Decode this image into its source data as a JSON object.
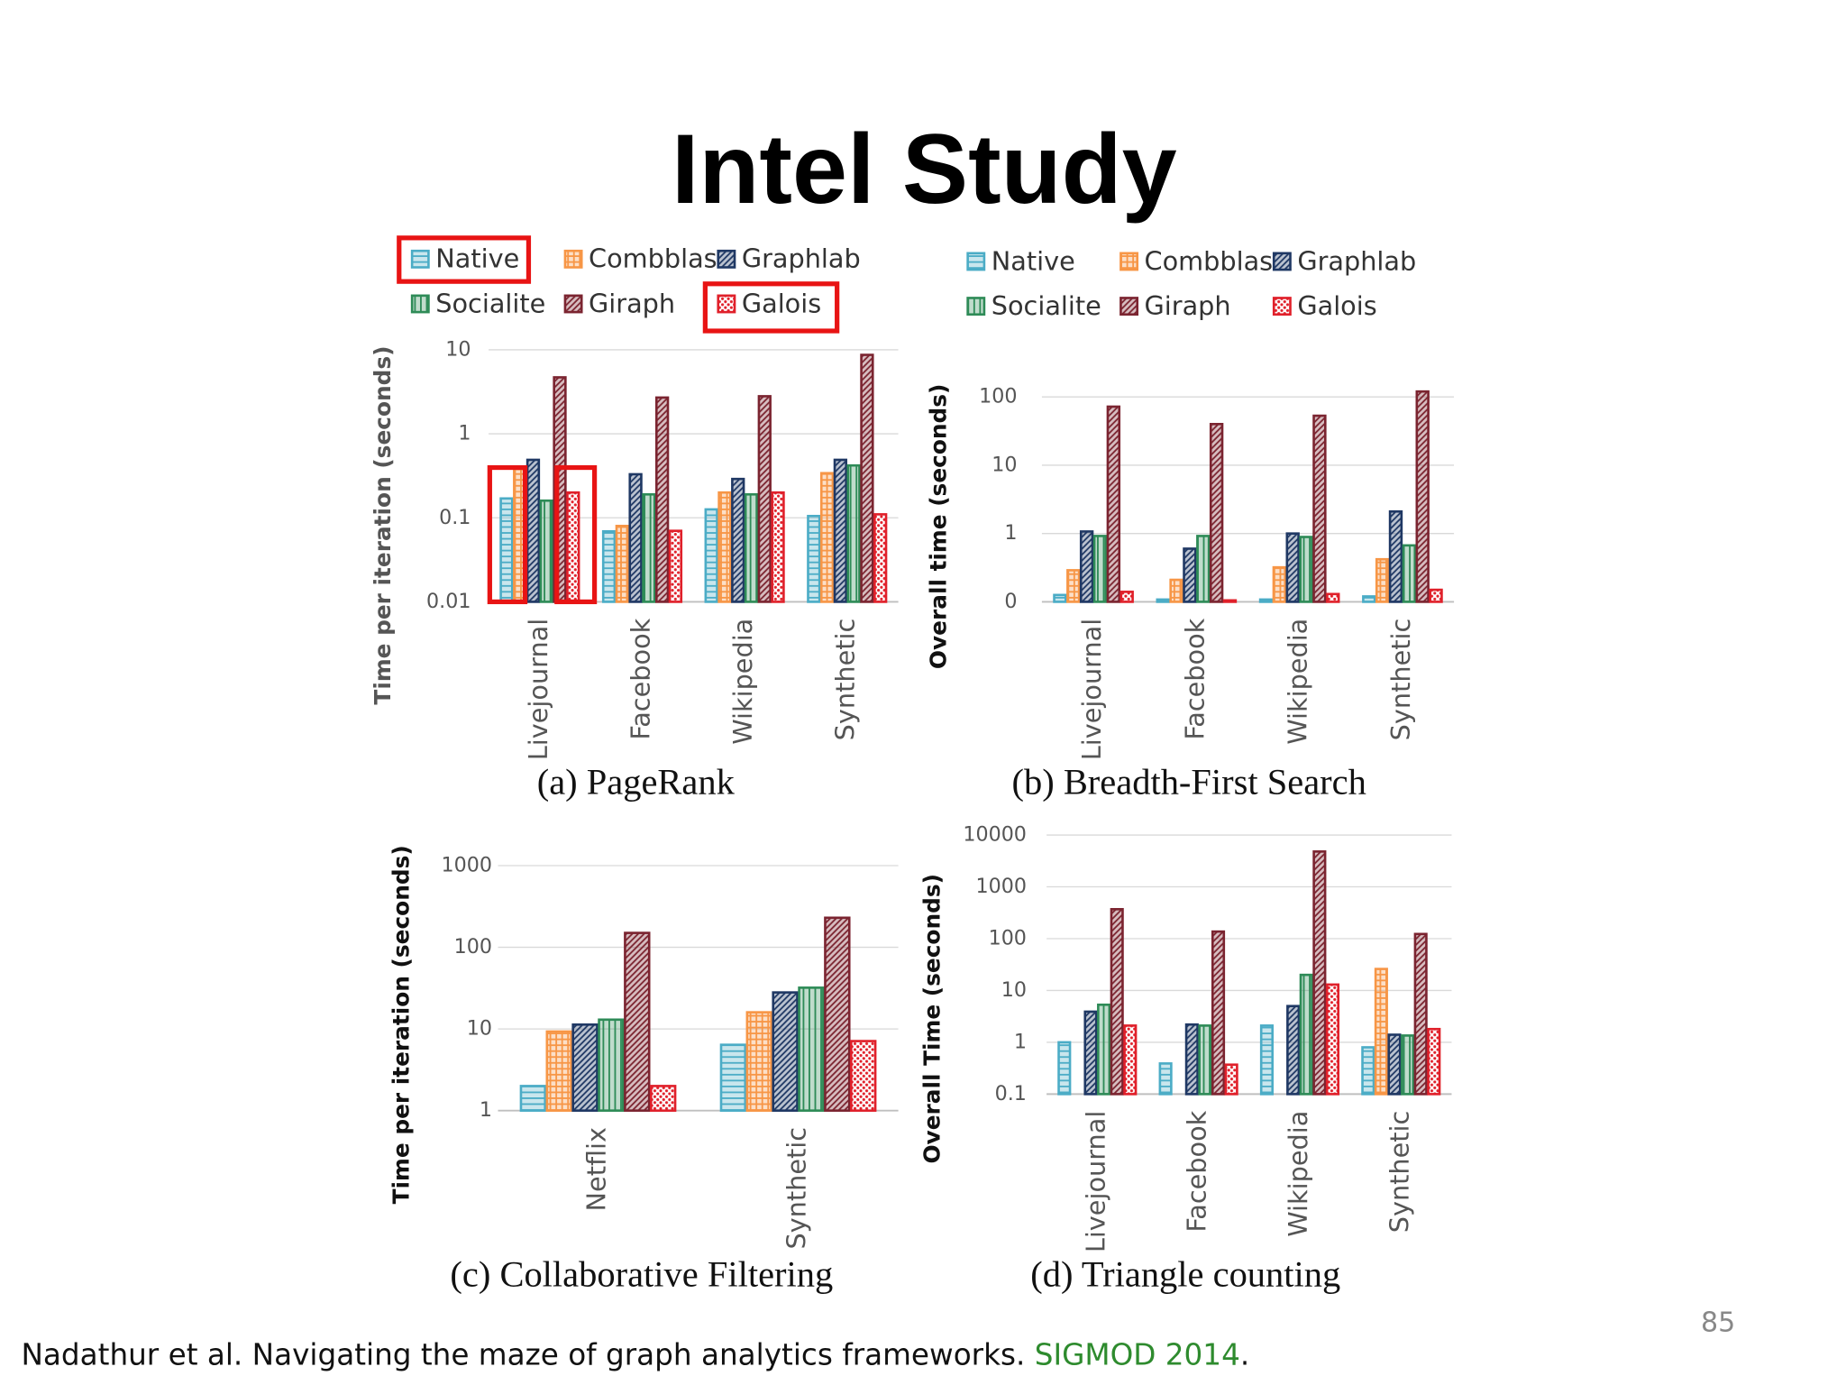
{
  "title": "Intel Study",
  "chart_data": [
    {
      "type": "bar",
      "title": "(a) PageRank",
      "y_label": "Time per iteration (seconds)",
      "log_y": true,
      "grid": true,
      "legend": true,
      "categories": [
        "Livejournal",
        "Facebook",
        "Wikipedia",
        "Synthetic"
      ],
      "ylim": [
        0.01,
        10
      ],
      "yticks": [
        10,
        1,
        0.1,
        0.01
      ],
      "series": [
        {
          "name": "Native",
          "color": "#4bacc6",
          "values": [
            0.17,
            0.069,
            0.126,
            0.105
          ]
        },
        {
          "name": "Combblas",
          "color": "#f79646",
          "values": [
            0.38,
            0.08,
            0.2,
            0.34
          ]
        },
        {
          "name": "Graphlab",
          "color": "#1f3864",
          "values": [
            0.49,
            0.33,
            0.29,
            0.49
          ]
        },
        {
          "name": "Socialite",
          "color": "#2e8b57",
          "values": [
            0.16,
            0.19,
            0.19,
            0.42
          ]
        },
        {
          "name": "Giraph",
          "color": "#7b2430",
          "values": [
            4.7,
            2.7,
            2.8,
            8.7
          ]
        },
        {
          "name": "Galois",
          "color": "#e0202a",
          "values": [
            0.2,
            0.07,
            0.2,
            0.11
          ]
        }
      ]
    },
    {
      "type": "bar",
      "title": "(b) Breadth-First Search",
      "y_label": "Overall time (seconds)",
      "log_y": true,
      "grid": true,
      "legend": true,
      "categories": [
        "Livejournal",
        "Facebook",
        "Wikipedia",
        "Synthetic"
      ],
      "ylim": [
        0.1,
        100
      ],
      "yticks": [
        100,
        10,
        1,
        {
          "value": 0.1,
          "label": "0"
        }
      ],
      "series": [
        {
          "name": "Native",
          "color": "#4bacc6",
          "values": [
            0.126,
            0.108,
            0.108,
            0.12
          ]
        },
        {
          "name": "Combblas",
          "color": "#f79646",
          "values": [
            0.29,
            0.21,
            0.32,
            0.42
          ]
        },
        {
          "name": "Graphlab",
          "color": "#1f3864",
          "values": [
            1.07,
            0.6,
            1.0,
            2.1
          ]
        },
        {
          "name": "Socialite",
          "color": "#2e8b57",
          "values": [
            0.92,
            0.92,
            0.89,
            0.67
          ]
        },
        {
          "name": "Giraph",
          "color": "#7b2430",
          "values": [
            72,
            40,
            53,
            120
          ]
        },
        {
          "name": "Galois",
          "color": "#e0202a",
          "values": [
            0.14,
            0.105,
            0.13,
            0.15
          ]
        }
      ]
    },
    {
      "type": "bar",
      "title": "(c) Collaborative Filtering",
      "y_label": "Time per iteration (seconds)",
      "log_y": true,
      "grid": true,
      "legend": false,
      "categories": [
        "Netflix",
        "Synthetic"
      ],
      "ylim": [
        1,
        1000
      ],
      "yticks": [
        1000,
        100,
        10,
        1
      ],
      "series": [
        {
          "color": "#4bacc6",
          "values": [
            2.0,
            6.4
          ]
        },
        {
          "color": "#f79646",
          "values": [
            9.3,
            16
          ]
        },
        {
          "color": "#1f3864",
          "values": [
            11.3,
            28
          ]
        },
        {
          "color": "#2e8b57",
          "values": [
            13,
            32
          ]
        },
        {
          "color": "#7b2430",
          "values": [
            150,
            230
          ]
        },
        {
          "color": "#e0202a",
          "values": [
            2.0,
            7.1
          ]
        }
      ]
    },
    {
      "type": "bar",
      "title": "(d) Triangle counting",
      "y_label": "Overall Time (seconds)",
      "log_y": true,
      "grid": true,
      "legend": false,
      "categories": [
        "Livejournal",
        "Facebook",
        "Wikipedia",
        "Synthetic"
      ],
      "ylim": [
        0.1,
        10000
      ],
      "yticks": [
        10000,
        1000,
        100,
        10,
        1,
        0.1
      ],
      "series": [
        {
          "color": "#4bacc6",
          "values": [
            1.0,
            0.39,
            2.1,
            0.8
          ]
        },
        {
          "color": "#f79646",
          "values": [
            null,
            null,
            null,
            26
          ]
        },
        {
          "color": "#1f3864",
          "values": [
            3.9,
            2.2,
            5.0,
            1.4
          ]
        },
        {
          "color": "#2e8b57",
          "values": [
            5.3,
            2.1,
            20,
            1.35
          ]
        },
        {
          "color": "#7b2430",
          "values": [
            370,
            137,
            4800,
            123
          ]
        },
        {
          "color": "#e0202a",
          "values": [
            2.1,
            0.37,
            13,
            1.8
          ]
        }
      ]
    }
  ],
  "footer": {
    "text": "Nadathur et al. Navigating the maze of graph analytics frameworks. ",
    "venue": "SIGMOD 2014",
    "end": "."
  },
  "page_number": "85"
}
